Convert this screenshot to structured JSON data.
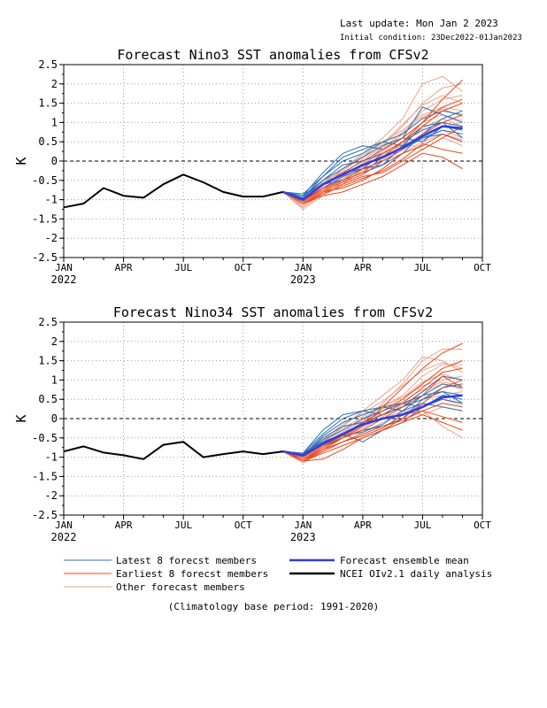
{
  "header": {
    "last_update": "Last update: Mon Jan 2 2023",
    "initial_condition": "Initial condition: 23Dec2022-01Jan2023"
  },
  "footer": {
    "climatology": "(Climatology base period: 1991-2020)"
  },
  "legend": {
    "items": [
      {
        "label": "Latest 8 forecst members",
        "color": "#2a6fb4"
      },
      {
        "label": "Earliest 8 forecst members",
        "color": "#e8491d"
      },
      {
        "label": "Other forecast members",
        "color": "#e8a58d"
      },
      {
        "label": "Forecast ensemble mean",
        "color": "#2b3de6"
      },
      {
        "label": "NCEI OIv2.1 daily analysis",
        "color": "#000000"
      }
    ]
  },
  "colors": {
    "latest": "#2a6fb4",
    "earliest": "#e8491d",
    "other": "#e8a58d",
    "mean": "#2b3de6",
    "analysis": "#000000"
  },
  "chart_data": [
    {
      "type": "line",
      "title": "Forecast Nino3 SST anomalies from CFSv2",
      "ylabel": "K",
      "ylim": [
        -2.5,
        2.5
      ],
      "yticks": [
        "2.5",
        "2",
        "1.5",
        "1",
        "0.5",
        "0",
        "-0.5",
        "-1",
        "-1.5",
        "-2",
        "-2.5"
      ],
      "xlim": [
        0,
        21
      ],
      "xticks": [
        {
          "m": 0,
          "label": "JAN",
          "year": "2022"
        },
        {
          "m": 3,
          "label": "APR",
          "year": ""
        },
        {
          "m": 6,
          "label": "JUL",
          "year": ""
        },
        {
          "m": 9,
          "label": "OCT",
          "year": ""
        },
        {
          "m": 12,
          "label": "JAN",
          "year": "2023"
        },
        {
          "m": 15,
          "label": "APR",
          "year": ""
        },
        {
          "m": 18,
          "label": "JUL",
          "year": ""
        },
        {
          "m": 21,
          "label": "OCT",
          "year": ""
        }
      ],
      "analysis": {
        "x": [
          0,
          1,
          2,
          3,
          4,
          5,
          6,
          7,
          8,
          9,
          10,
          11
        ],
        "y": [
          -1.2,
          -1.1,
          -0.7,
          -0.9,
          -0.95,
          -0.6,
          -0.35,
          -0.55,
          -0.8,
          -0.92,
          -0.92,
          -0.8
        ]
      },
      "forecast_x": [
        11,
        12,
        13,
        14,
        15,
        16,
        17,
        18,
        19,
        20
      ],
      "ensemble_mean": [
        -0.8,
        -1.0,
        -0.6,
        -0.35,
        -0.1,
        0.1,
        0.35,
        0.65,
        0.9,
        0.85
      ],
      "latest_members": [
        [
          -0.8,
          -0.85,
          -0.4,
          0.1,
          0.3,
          0.5,
          0.7,
          1.1,
          1.3,
          1.2
        ],
        [
          -0.8,
          -0.95,
          -0.5,
          -0.1,
          0.0,
          0.2,
          0.5,
          0.8,
          1.0,
          0.9
        ],
        [
          -0.8,
          -0.9,
          -0.3,
          0.2,
          0.4,
          0.3,
          0.6,
          1.4,
          1.2,
          1.0
        ],
        [
          -0.8,
          -1.0,
          -0.6,
          -0.3,
          -0.2,
          0.0,
          0.3,
          0.6,
          0.8,
          0.7
        ],
        [
          -0.8,
          -0.9,
          -0.5,
          -0.2,
          0.1,
          0.4,
          0.6,
          0.5,
          0.9,
          0.8
        ],
        [
          -0.8,
          -1.0,
          -0.7,
          -0.4,
          -0.2,
          -0.1,
          0.2,
          0.7,
          1.1,
          1.3
        ],
        [
          -0.8,
          -0.95,
          -0.4,
          0.0,
          0.2,
          0.5,
          0.4,
          0.6,
          0.7,
          0.5
        ],
        [
          -0.8,
          -0.9,
          -0.6,
          -0.5,
          -0.3,
          -0.1,
          0.4,
          0.9,
          1.0,
          0.6
        ]
      ],
      "earliest_members": [
        [
          -0.8,
          -1.1,
          -0.8,
          -0.6,
          -0.4,
          -0.3,
          0.0,
          0.3,
          0.6,
          0.9
        ],
        [
          -0.8,
          -1.05,
          -0.7,
          -0.5,
          -0.3,
          0.1,
          0.5,
          1.0,
          1.6,
          2.1
        ],
        [
          -0.8,
          -1.1,
          -0.9,
          -0.8,
          -0.6,
          -0.4,
          -0.1,
          0.2,
          0.1,
          -0.2
        ],
        [
          -0.8,
          -1.0,
          -0.6,
          -0.3,
          0.0,
          0.3,
          0.6,
          1.0,
          1.4,
          1.6
        ],
        [
          -0.8,
          -1.1,
          -0.8,
          -0.7,
          -0.5,
          -0.2,
          0.2,
          0.4,
          0.7,
          0.5
        ],
        [
          -0.8,
          -1.05,
          -0.75,
          -0.55,
          -0.35,
          0.0,
          0.3,
          0.7,
          1.0,
          1.2
        ],
        [
          -0.8,
          -1.1,
          -0.85,
          -0.65,
          -0.45,
          -0.25,
          0.05,
          0.45,
          0.3,
          0.2
        ],
        [
          -0.8,
          -1.0,
          -0.7,
          -0.5,
          -0.2,
          0.2,
          0.5,
          0.9,
          1.3,
          1.5
        ]
      ],
      "other_members": [
        [
          -0.8,
          -1.25,
          -0.9,
          -0.6,
          -0.2,
          0.4,
          0.9,
          1.5,
          1.9,
          2.0
        ],
        [
          -0.8,
          -1.2,
          -0.8,
          -0.5,
          -0.1,
          0.3,
          0.7,
          1.3,
          1.6,
          1.7
        ],
        [
          -0.8,
          -1.1,
          -0.6,
          -0.2,
          0.2,
          0.6,
          1.1,
          2.0,
          2.2,
          1.8
        ],
        [
          -0.8,
          -1.0,
          -0.5,
          -0.3,
          0.0,
          0.2,
          0.4,
          0.7,
          0.9,
          1.0
        ],
        [
          -0.8,
          -0.95,
          -0.55,
          -0.25,
          0.1,
          0.5,
          0.8,
          1.2,
          1.4,
          1.3
        ],
        [
          -0.8,
          -1.15,
          -0.75,
          -0.4,
          -0.05,
          0.2,
          0.5,
          0.3,
          0.6,
          0.4
        ],
        [
          -0.8,
          -1.1,
          -0.7,
          -0.45,
          -0.15,
          0.15,
          0.45,
          0.85,
          1.1,
          0.9
        ],
        [
          -0.8,
          -1.05,
          -0.65,
          -0.35,
          0.05,
          0.35,
          0.75,
          1.15,
          1.35,
          1.15
        ],
        [
          -0.8,
          -1.2,
          -0.85,
          -0.55,
          -0.25,
          0.05,
          0.35,
          0.55,
          0.8,
          0.6
        ],
        [
          -0.8,
          -1.0,
          -0.6,
          -0.2,
          0.15,
          0.45,
          0.95,
          1.45,
          1.7,
          1.5
        ],
        [
          -0.8,
          -1.1,
          -0.75,
          -0.5,
          -0.2,
          0.0,
          0.2,
          0.5,
          0.7,
          0.55
        ],
        [
          -0.8,
          -1.15,
          -0.8,
          -0.45,
          -0.1,
          0.25,
          0.6,
          1.0,
          1.2,
          1.05
        ]
      ]
    },
    {
      "type": "line",
      "title": "Forecast Nino34 SST anomalies from CFSv2",
      "ylabel": "K",
      "ylim": [
        -2.5,
        2.5
      ],
      "yticks": [
        "2.5",
        "2",
        "1.5",
        "1",
        "0.5",
        "0",
        "-0.5",
        "-1",
        "-1.5",
        "-2",
        "-2.5"
      ],
      "xlim": [
        0,
        21
      ],
      "xticks": [
        {
          "m": 0,
          "label": "JAN",
          "year": "2022"
        },
        {
          "m": 3,
          "label": "APR",
          "year": ""
        },
        {
          "m": 6,
          "label": "JUL",
          "year": ""
        },
        {
          "m": 9,
          "label": "OCT",
          "year": ""
        },
        {
          "m": 12,
          "label": "JAN",
          "year": "2023"
        },
        {
          "m": 15,
          "label": "APR",
          "year": ""
        },
        {
          "m": 18,
          "label": "JUL",
          "year": ""
        },
        {
          "m": 21,
          "label": "OCT",
          "year": ""
        }
      ],
      "analysis": {
        "x": [
          0,
          1,
          2,
          3,
          4,
          5,
          6,
          7,
          8,
          9,
          10,
          11
        ],
        "y": [
          -0.85,
          -0.72,
          -0.88,
          -0.95,
          -1.05,
          -0.68,
          -0.6,
          -1.0,
          -0.92,
          -0.85,
          -0.92,
          -0.85
        ]
      },
      "forecast_x": [
        11,
        12,
        13,
        14,
        15,
        16,
        17,
        18,
        19,
        20
      ],
      "ensemble_mean": [
        -0.85,
        -0.95,
        -0.65,
        -0.4,
        -0.15,
        0.0,
        0.1,
        0.3,
        0.55,
        0.6
      ],
      "latest_members": [
        [
          -0.85,
          -0.9,
          -0.4,
          0.0,
          0.2,
          0.3,
          0.4,
          0.6,
          0.9,
          0.8
        ],
        [
          -0.85,
          -0.95,
          -0.5,
          -0.2,
          -0.1,
          0.1,
          0.3,
          0.5,
          0.7,
          0.6
        ],
        [
          -0.85,
          -0.9,
          -0.3,
          0.1,
          0.2,
          0.1,
          0.3,
          0.7,
          1.1,
          1.0
        ],
        [
          -0.85,
          -1.0,
          -0.6,
          -0.4,
          -0.6,
          -0.3,
          -0.1,
          0.3,
          0.6,
          0.5
        ],
        [
          -0.85,
          -0.9,
          -0.55,
          -0.3,
          0.0,
          0.2,
          0.4,
          0.3,
          0.5,
          0.4
        ],
        [
          -0.85,
          -1.0,
          -0.7,
          -0.5,
          -0.3,
          -0.2,
          0.0,
          0.5,
          0.8,
          0.9
        ],
        [
          -0.85,
          -0.95,
          -0.45,
          -0.1,
          0.1,
          0.3,
          0.2,
          0.4,
          0.3,
          0.2
        ],
        [
          -0.85,
          -0.9,
          -0.6,
          -0.45,
          -0.35,
          -0.15,
          0.2,
          0.6,
          0.7,
          0.4
        ]
      ],
      "earliest_members": [
        [
          -0.85,
          -1.1,
          -1.05,
          -0.8,
          -0.5,
          -0.3,
          0.0,
          0.4,
          0.8,
          1.0
        ],
        [
          -0.85,
          -1.05,
          -0.8,
          -0.5,
          -0.2,
          0.3,
          0.8,
          1.3,
          1.7,
          1.95
        ],
        [
          -0.85,
          -1.1,
          -0.9,
          -0.7,
          -0.5,
          -0.3,
          -0.1,
          0.1,
          -0.1,
          -0.3
        ],
        [
          -0.85,
          -1.0,
          -0.7,
          -0.4,
          -0.1,
          0.2,
          0.5,
          0.9,
          1.3,
          1.5
        ],
        [
          -0.85,
          -1.1,
          -0.85,
          -0.6,
          -0.45,
          -0.25,
          0.1,
          0.2,
          0.4,
          0.3
        ],
        [
          -0.85,
          -1.05,
          -0.75,
          -0.5,
          -0.3,
          0.0,
          0.3,
          0.6,
          1.1,
          0.8
        ],
        [
          -0.85,
          -1.1,
          -0.8,
          -0.6,
          -0.4,
          -0.2,
          -0.05,
          0.2,
          0.05,
          -0.1
        ],
        [
          -0.85,
          -1.0,
          -0.7,
          -0.45,
          -0.15,
          0.1,
          0.4,
          0.8,
          1.2,
          1.3
        ]
      ],
      "other_members": [
        [
          -0.85,
          -1.1,
          -0.8,
          -0.5,
          -0.1,
          0.4,
          0.9,
          1.5,
          1.8,
          1.8
        ],
        [
          -0.85,
          -1.05,
          -0.7,
          -0.4,
          0.0,
          0.3,
          0.6,
          1.1,
          1.4,
          1.4
        ],
        [
          -0.85,
          -1.0,
          -0.6,
          -0.2,
          0.2,
          0.6,
          1.0,
          1.6,
          1.5,
          1.2
        ],
        [
          -0.85,
          -0.95,
          -0.6,
          -0.3,
          0.0,
          0.1,
          0.3,
          0.5,
          0.6,
          0.7
        ],
        [
          -0.85,
          -1.0,
          -0.55,
          -0.25,
          0.05,
          0.35,
          0.55,
          0.85,
          1.0,
          1.1
        ],
        [
          -0.85,
          -1.05,
          -0.75,
          -0.45,
          -0.2,
          0.0,
          0.2,
          0.1,
          0.3,
          0.2
        ],
        [
          -0.85,
          -1.1,
          -0.7,
          -0.5,
          -0.25,
          0.05,
          0.35,
          0.7,
          0.9,
          0.75
        ],
        [
          -0.85,
          -1.0,
          -0.65,
          -0.35,
          -0.05,
          0.25,
          0.55,
          0.95,
          1.15,
          1.0
        ],
        [
          -0.85,
          -1.15,
          -0.85,
          -0.6,
          -0.35,
          -0.1,
          0.15,
          0.35,
          0.5,
          0.35
        ],
        [
          -0.85,
          -0.95,
          -0.55,
          -0.15,
          0.15,
          0.45,
          0.85,
          1.25,
          1.45,
          1.3
        ],
        [
          -0.85,
          -1.05,
          -0.7,
          -0.45,
          -0.3,
          -0.2,
          0.0,
          0.2,
          -0.2,
          -0.5
        ],
        [
          -0.85,
          -1.1,
          -0.75,
          -0.4,
          -0.1,
          0.2,
          0.45,
          0.75,
          0.95,
          0.85
        ]
      ]
    }
  ]
}
